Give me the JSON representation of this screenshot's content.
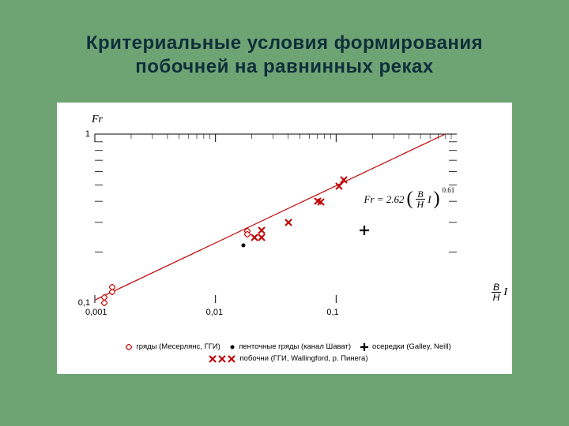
{
  "title": "Критериальные условия формирования побочней на равнинных реках",
  "panel": {
    "background": "#ffffff",
    "yaxis_label": "Fr",
    "yaxis_label_fontsize": 14,
    "xaxis_label_right": {
      "num": "B",
      "den": "H",
      "suffix": "I"
    },
    "x_log": true,
    "y_log": true,
    "xlim": [
      0.001,
      1
    ],
    "ylim": [
      0.1,
      1
    ],
    "xticks": [
      {
        "v": 0.001,
        "label": "0,001"
      },
      {
        "v": 0.01,
        "label": "0,01"
      },
      {
        "v": 0.1,
        "label": "0,1"
      }
    ],
    "yticks": [
      {
        "v": 0.1,
        "label": "0,1"
      },
      {
        "v": 1,
        "label": "1"
      }
    ],
    "tick_fontsize": 11,
    "tick_len_main": 10,
    "tick_len_minor": 6,
    "formula": {
      "prefix": "Fr = 2.62",
      "frac": {
        "num": "B",
        "den": "H"
      },
      "suffix": "I",
      "exp": "0.61"
    },
    "fit_line": {
      "x1": 0.001,
      "y1": 0.104,
      "x2": 0.8,
      "y2": 1.0,
      "color": "#c00000",
      "width": 1.2
    },
    "series": [
      {
        "name": "ripples",
        "marker": "diamond",
        "stroke": "#c00000",
        "fill": "#ffffff",
        "size": 8,
        "points": [
          [
            0.0012,
            0.1
          ],
          [
            0.0012,
            0.108
          ],
          [
            0.0014,
            0.116
          ],
          [
            0.0014,
            0.124
          ],
          [
            0.0184,
            0.265
          ],
          [
            0.0184,
            0.255
          ]
        ]
      },
      {
        "name": "ribbon",
        "marker": "circle",
        "stroke": "#000000",
        "fill": "#000000",
        "size": 6,
        "points": [
          [
            0.017,
            0.22
          ]
        ]
      },
      {
        "name": "pobochni",
        "marker": "x",
        "stroke": "#c00000",
        "fill": "none",
        "size": 10,
        "points": [
          [
            0.021,
            0.245
          ],
          [
            0.024,
            0.245
          ],
          [
            0.024,
            0.27
          ],
          [
            0.04,
            0.3
          ],
          [
            0.07,
            0.4
          ],
          [
            0.075,
            0.395
          ],
          [
            0.105,
            0.49
          ],
          [
            0.115,
            0.535
          ]
        ]
      },
      {
        "name": "oseredki",
        "marker": "plus",
        "stroke": "#000000",
        "fill": "none",
        "size": 12,
        "points": [
          [
            0.17,
            0.27
          ]
        ]
      }
    ],
    "legend": [
      {
        "marker": "diamond",
        "stroke": "#c00000",
        "fill": "#ffffff",
        "size": 8,
        "label": "гряды (Месерлянс, ГГИ)"
      },
      {
        "marker": "circle",
        "stroke": "#000000",
        "fill": "#000000",
        "size": 6,
        "label": "ленточные гряды (канал Шават)"
      },
      {
        "marker": "plus",
        "stroke": "#000000",
        "fill": "none",
        "size": 10,
        "label": "осередки (Galley, Neill)"
      },
      {
        "marker": "x3",
        "stroke": "#c00000",
        "fill": "none",
        "size": 10,
        "label": "побочни (ГГИ, Wallingford, р. Пинега)"
      }
    ],
    "legend_fontsize": 9.5
  },
  "colors": {
    "slide_bg": "#6ea374",
    "title": "#0e2e3a"
  }
}
